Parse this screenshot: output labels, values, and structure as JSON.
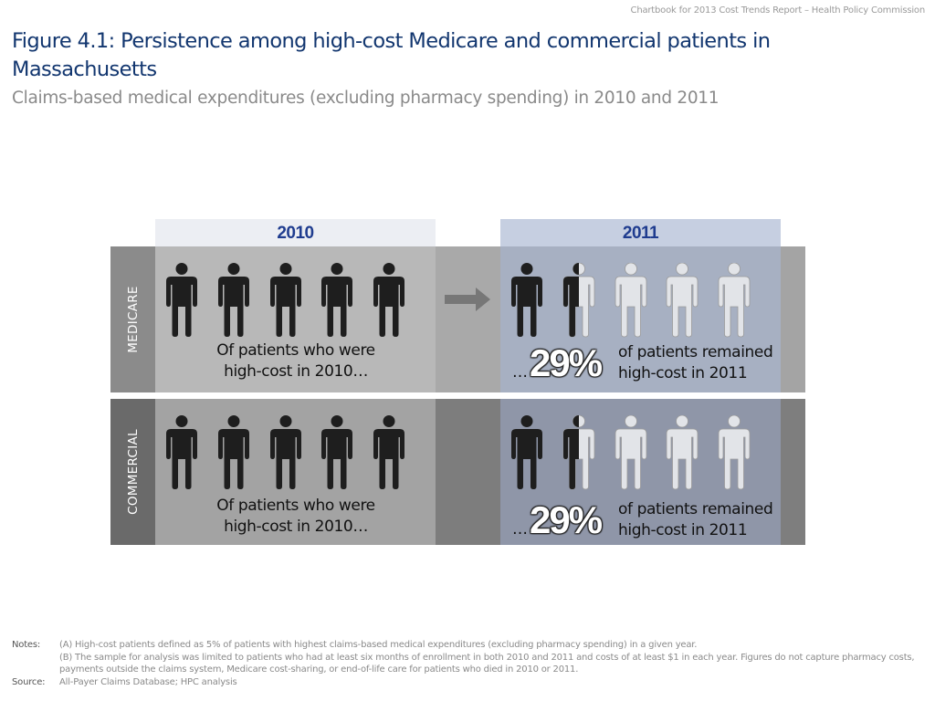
{
  "header_note": "Chartbook for 2013 Cost Trends Report – Health Policy Commission",
  "title": "Figure 4.1: Persistence among high-cost Medicare and commercial patients in Massachusetts",
  "subtitle": "Claims-based medical expenditures (excluding pharmacy spending) in 2010 and 2011",
  "years": {
    "left": "2010",
    "right": "2011"
  },
  "rows": [
    {
      "label": "MEDICARE",
      "caption_line1": "Of patients who were",
      "caption_line2": "high-cost in 2010…",
      "ellipsis": "…",
      "percent": "29%",
      "remained_line1": "of patients remained",
      "remained_line2": "high-cost in 2011",
      "persistence_fraction": 0.29
    },
    {
      "label": "COMMERCIAL",
      "caption_line1": "Of patients who were",
      "caption_line2": "high-cost in 2010…",
      "ellipsis": "…",
      "percent": "29%",
      "remained_line1": "of patients remained",
      "remained_line2": "high-cost in 2011",
      "persistence_fraction": 0.29
    }
  ],
  "icons": {
    "person": "person-icon",
    "arrow": "right-arrow-icon"
  },
  "colors": {
    "title": "#12366f",
    "year_text": "#1f3c8f",
    "person_dark": "#1e1e1e",
    "person_light": "#e2e4e8"
  },
  "notes": {
    "notes_label": "Notes:",
    "note_a": "(A) High-cost patients defined as 5% of patients with highest claims-based medical expenditures (excluding pharmacy spending) in a given year.",
    "note_b": "(B) The sample for analysis was limited to patients who had at least six months of enrollment in both 2010 and 2011 and costs of at least $1 in each year. Figures do not capture pharmacy costs, payments outside the claims system, Medicare cost-sharing, or end-of-life care for patients who died in 2010 or 2011.",
    "source_label": "Source:",
    "source": "All-Payer Claims Database; HPC analysis"
  }
}
